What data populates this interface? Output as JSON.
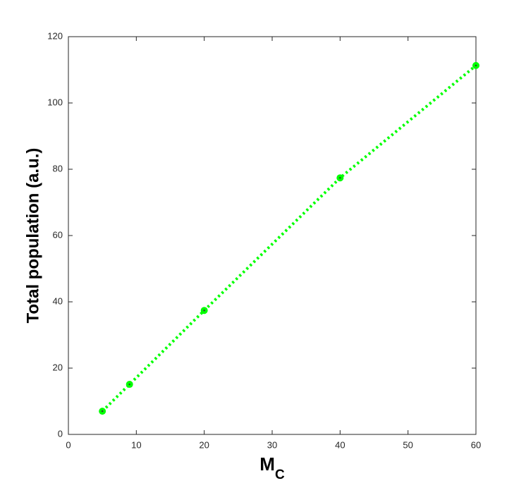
{
  "chart_data": {
    "type": "line",
    "xlabel": "M",
    "xlabel_subscript": "C",
    "ylabel": "Total population (a.u.)",
    "x": [
      5,
      9,
      20,
      40,
      60
    ],
    "series": [
      {
        "color": "#00ff00",
        "values": [
          7.0,
          15.1,
          37.4,
          77.4,
          111.3
        ]
      }
    ],
    "xlim": [
      0,
      60
    ],
    "xticks": [
      0,
      10,
      20,
      30,
      40,
      50,
      60
    ],
    "ylim": [
      0,
      120
    ],
    "yticks": [
      0,
      20,
      40,
      60,
      80,
      100,
      120
    ]
  }
}
